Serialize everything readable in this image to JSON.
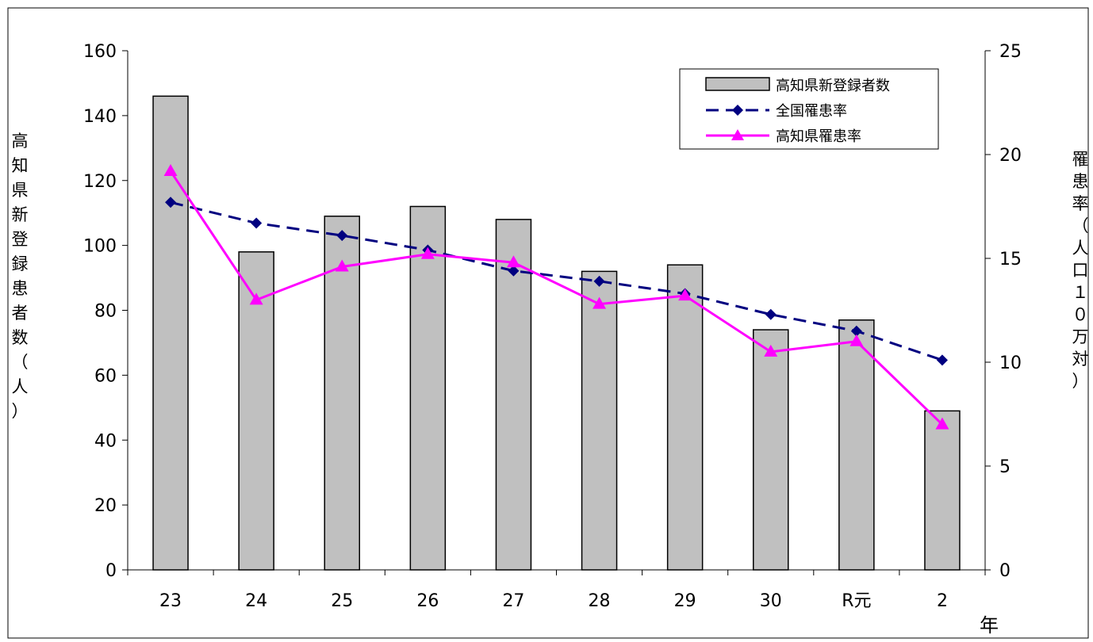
{
  "chart_data": {
    "type": "bar",
    "categories": [
      "23",
      "24",
      "25",
      "26",
      "27",
      "28",
      "29",
      "30",
      "R元",
      "2"
    ],
    "x_axis_unit": "年",
    "y_left": {
      "label": "高知県新登録患者数（人）",
      "range": [
        0,
        160
      ],
      "ticks": [
        "0",
        "20",
        "40",
        "60",
        "80",
        "100",
        "120",
        "140",
        "160"
      ]
    },
    "y_right": {
      "label": "罹患率（人口１０万対）",
      "range": [
        0,
        25
      ],
      "ticks": [
        "0",
        "5",
        "10",
        "15",
        "20",
        "25"
      ]
    },
    "series": [
      {
        "name": "高知県新登録者数",
        "kind": "bar",
        "axis": "left",
        "color": "#c0c0c0",
        "values": [
          146,
          98,
          109,
          112,
          108,
          92,
          94,
          74,
          77,
          49
        ]
      },
      {
        "name": "全国罹患率",
        "kind": "line-dashed",
        "axis": "right",
        "color": "#000080",
        "marker": "diamond",
        "values": [
          17.7,
          16.7,
          16.1,
          15.4,
          14.4,
          13.9,
          13.3,
          12.3,
          11.5,
          10.1
        ]
      },
      {
        "name": "高知県罹患率",
        "kind": "line",
        "axis": "right",
        "color": "#ff00ff",
        "marker": "triangle",
        "values": [
          19.2,
          13.0,
          14.6,
          15.2,
          14.8,
          12.8,
          13.2,
          10.5,
          11.0,
          7.0
        ]
      }
    ],
    "legend_position": "top-right",
    "grid": false
  }
}
